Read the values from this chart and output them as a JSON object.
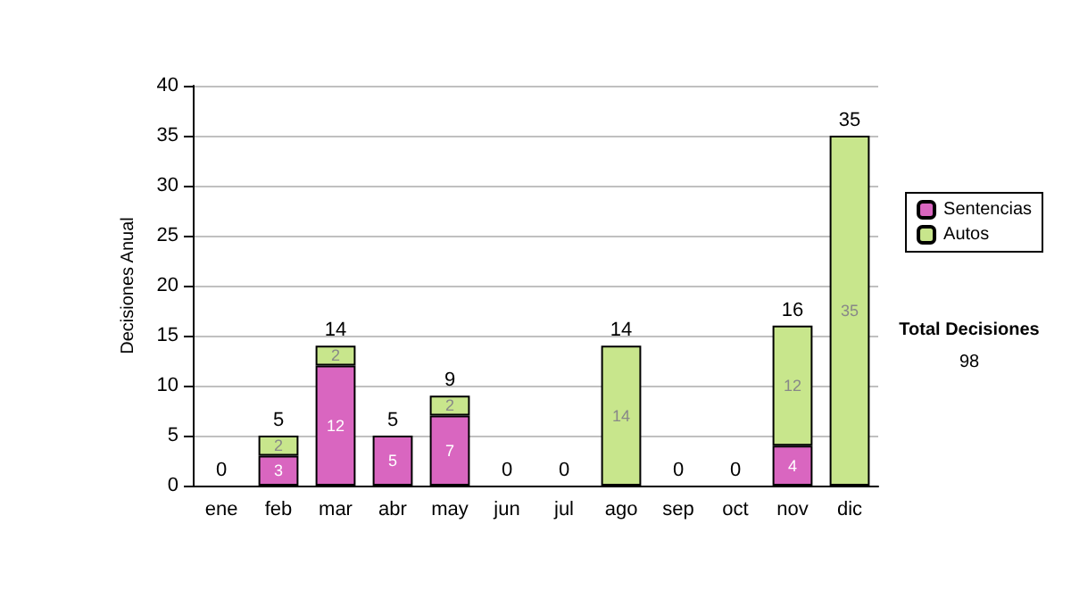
{
  "chart_data": {
    "type": "bar",
    "stacked": true,
    "ylabel": "Decisiones Anual",
    "categories": [
      "ene",
      "feb",
      "mar",
      "abr",
      "may",
      "jun",
      "jul",
      "ago",
      "sep",
      "oct",
      "nov",
      "dic"
    ],
    "series": [
      {
        "name": "Sentencias",
        "color": "#d966c0",
        "values": [
          0,
          3,
          12,
          5,
          7,
          0,
          0,
          0,
          0,
          0,
          4,
          0
        ],
        "value_labels": [
          null,
          "3",
          "12",
          "5",
          "7",
          null,
          null,
          null,
          null,
          null,
          "4",
          null
        ]
      },
      {
        "name": "Autos",
        "color": "#c8e68c",
        "values": [
          0,
          2,
          2,
          0,
          2,
          0,
          0,
          14,
          0,
          0,
          12,
          35
        ],
        "value_labels": [
          null,
          "2",
          "2",
          null,
          "2",
          null,
          null,
          "14",
          null,
          null,
          "12",
          "35"
        ]
      }
    ],
    "totals": [
      "0",
      "5",
      "14",
      "5",
      "9",
      "0",
      "0",
      "14",
      "0",
      "0",
      "16",
      "35"
    ],
    "ylim": [
      0,
      40
    ],
    "yticks": [
      0,
      5,
      10,
      15,
      20,
      25,
      30,
      35,
      40
    ],
    "grid": "y",
    "legend": "right",
    "annotations": [
      "Total Decisiones",
      "98"
    ]
  }
}
